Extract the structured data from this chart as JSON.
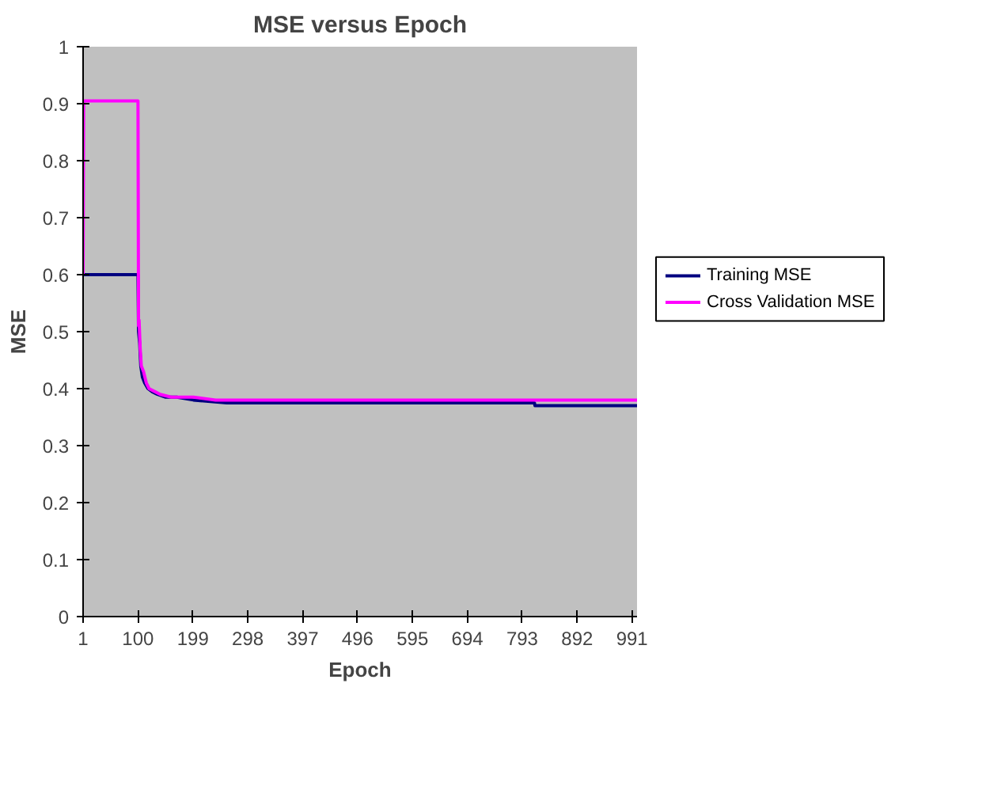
{
  "chart_data": {
    "type": "line",
    "title": "MSE versus Epoch",
    "xlabel": "Epoch",
    "ylabel": "MSE",
    "xlim": [
      1,
      1000
    ],
    "xticks": [
      1,
      100,
      199,
      298,
      397,
      496,
      595,
      694,
      793,
      892,
      991
    ],
    "ylim": [
      0,
      1
    ],
    "yticks": [
      0,
      0.1,
      0.2,
      0.3,
      0.4,
      0.5,
      0.6,
      0.7,
      0.8,
      0.9,
      1
    ],
    "grid": false,
    "legend": "right",
    "marker": "none",
    "line_style": "solid",
    "series": [
      {
        "name": "Training MSE",
        "color": "#000080",
        "x": [
          1,
          100,
          101,
          103,
          105,
          108,
          112,
          118,
          125,
          135,
          150,
          170,
          200,
          260,
          815,
          816,
          1000
        ],
        "values": [
          0.6,
          0.6,
          0.5,
          0.48,
          0.44,
          0.42,
          0.41,
          0.4,
          0.395,
          0.39,
          0.385,
          0.385,
          0.38,
          0.375,
          0.375,
          0.37,
          0.37
        ]
      },
      {
        "name": "Cross Validation MSE",
        "color": "#ff00ff",
        "x": [
          1,
          2,
          100,
          101,
          102,
          104,
          106,
          110,
          115,
          120,
          130,
          140,
          160,
          200,
          240,
          1000
        ],
        "values": [
          0.6,
          0.905,
          0.905,
          0.51,
          0.52,
          0.47,
          0.44,
          0.43,
          0.41,
          0.4,
          0.395,
          0.39,
          0.385,
          0.385,
          0.38,
          0.38
        ]
      }
    ]
  }
}
